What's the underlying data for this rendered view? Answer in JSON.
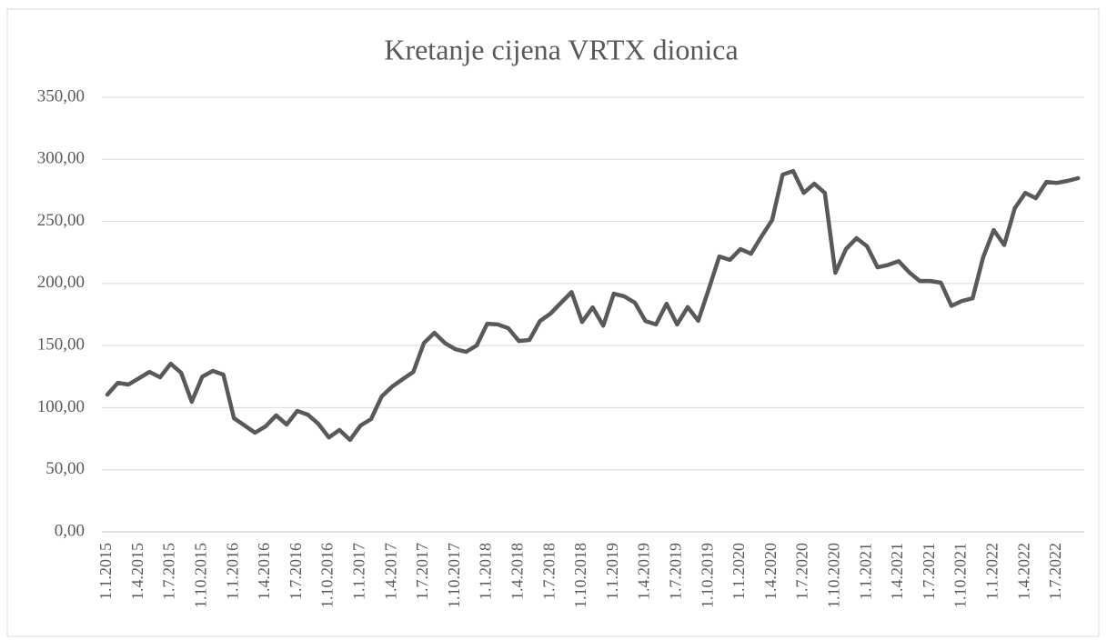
{
  "chart_data": {
    "type": "line",
    "title": "Kretanje cijena VRTX dionica",
    "categories": [
      "1.1.2015",
      null,
      null,
      "1.4.2015",
      null,
      null,
      "1.7.2015",
      null,
      null,
      "1.10.2015",
      null,
      null,
      "1.1.2016",
      null,
      null,
      "1.4.2016",
      null,
      null,
      "1.7.2016",
      null,
      null,
      "1.10.2016",
      null,
      null,
      "1.1.2017",
      null,
      null,
      "1.4.2017",
      null,
      null,
      "1.7.2017",
      null,
      null,
      "1.10.2017",
      null,
      null,
      "1.1.2018",
      null,
      null,
      "1.4.2018",
      null,
      null,
      "1.7.2018",
      null,
      null,
      "1.10.2018",
      null,
      null,
      "1.1.2019",
      null,
      null,
      "1.4.2019",
      null,
      null,
      "1.7.2019",
      null,
      null,
      "1.10.2019",
      null,
      null,
      "1.1.2020",
      null,
      null,
      "1.4.2020",
      null,
      null,
      "1.7.2020",
      null,
      null,
      "1.10.2020",
      null,
      null,
      "1.1.2021",
      null,
      null,
      "1.4.2021",
      null,
      null,
      "1.7.2021",
      null,
      null,
      "1.10.2021",
      null,
      null,
      "1.1.2022",
      null,
      null,
      "1.4.2022",
      null,
      null,
      "1.7.2022",
      null,
      null
    ],
    "values": [
      110.5,
      120,
      118.6,
      123.7,
      128.8,
      124.5,
      135.4,
      128,
      104.7,
      125,
      129.6,
      126.6,
      91.5,
      85.7,
      79.8,
      85,
      93.7,
      86.4,
      97.4,
      94.4,
      87,
      76,
      82,
      74,
      85.7,
      90.8,
      109,
      117,
      123,
      128.8,
      152,
      160.3,
      152,
      147,
      145,
      150,
      167.6,
      167,
      164,
      153.7,
      154.5,
      169.8,
      175.7,
      184.5,
      193,
      169,
      180.8,
      166,
      191.8,
      189.6,
      184.5,
      169.8,
      167,
      183.7,
      167,
      181,
      170,
      195.5,
      221.8,
      219,
      227.7,
      224,
      238,
      251,
      287.7,
      290.6,
      273,
      280.4,
      273,
      208.6,
      227.7,
      236.5,
      230,
      213,
      215,
      218,
      209,
      202,
      202,
      200.6,
      182,
      186,
      188,
      221,
      243,
      231,
      260.6,
      273,
      268.7,
      281.8,
      281,
      282.6,
      284.8
    ],
    "color": "#595959",
    "ylim": [
      0,
      350
    ],
    "yticks": [
      {
        "value": 0,
        "label": "0,00"
      },
      {
        "value": 50,
        "label": "50,00"
      },
      {
        "value": 100,
        "label": "100,00"
      },
      {
        "value": 150,
        "label": "150,00"
      },
      {
        "value": 200,
        "label": "200,00"
      },
      {
        "value": 250,
        "label": "250,00"
      },
      {
        "value": 300,
        "label": "300,00"
      },
      {
        "value": 350,
        "label": "350,00"
      }
    ],
    "grid": true
  }
}
